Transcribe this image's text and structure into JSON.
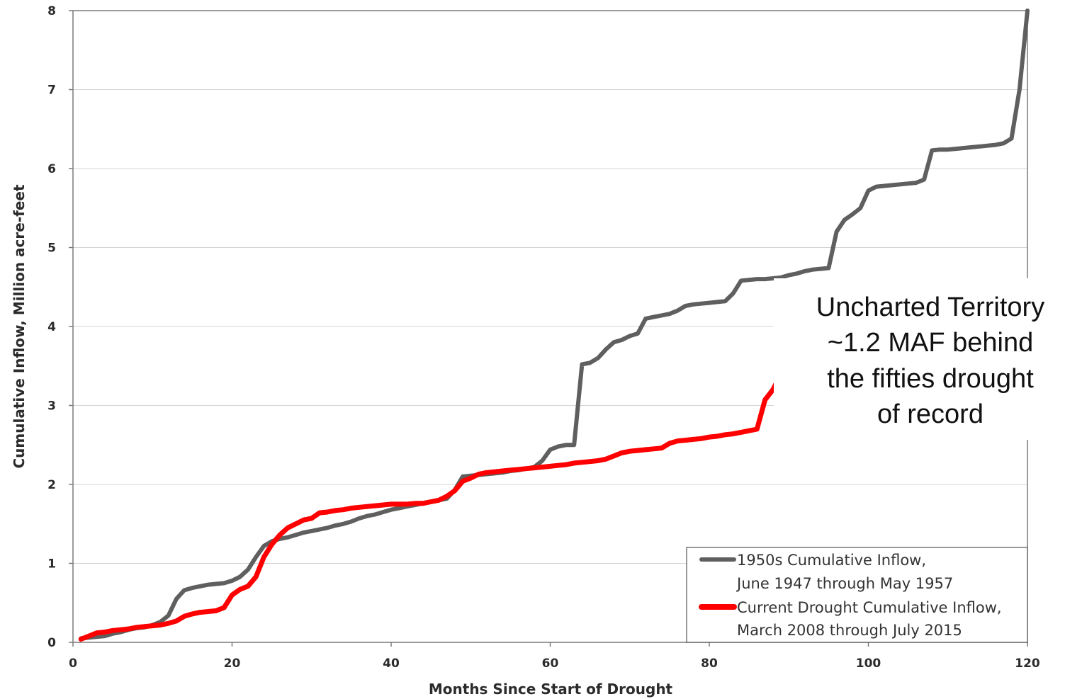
{
  "chart_data": {
    "type": "line",
    "title": "",
    "xlabel": "Months Since Start of Drought",
    "ylabel": "Cumulative Inflow, Million acre-feet",
    "xlim": [
      0,
      120
    ],
    "ylim": [
      0,
      8
    ],
    "x_ticks": [
      "0",
      "20",
      "40",
      "60",
      "80",
      "100",
      "120"
    ],
    "y_ticks": [
      "0",
      "1",
      "2",
      "3",
      "4",
      "5",
      "6",
      "7",
      "8"
    ],
    "grid": "horizontal",
    "legend_position": "bottom-right",
    "series": [
      {
        "name": "1950s Cumulative Inflow, June 1947 through May 1957",
        "legend_lines": [
          "1950s Cumulative Inflow,",
          "June 1947 through May 1957"
        ],
        "color": "#5f5f5f",
        "points": [
          [
            1,
            0.05
          ],
          [
            2,
            0.06
          ],
          [
            3,
            0.07
          ],
          [
            4,
            0.08
          ],
          [
            5,
            0.11
          ],
          [
            6,
            0.13
          ],
          [
            7,
            0.16
          ],
          [
            8,
            0.18
          ],
          [
            9,
            0.19
          ],
          [
            10,
            0.22
          ],
          [
            11,
            0.26
          ],
          [
            12,
            0.34
          ],
          [
            13,
            0.55
          ],
          [
            14,
            0.66
          ],
          [
            15,
            0.69
          ],
          [
            16,
            0.71
          ],
          [
            17,
            0.73
          ],
          [
            18,
            0.74
          ],
          [
            19,
            0.75
          ],
          [
            20,
            0.78
          ],
          [
            21,
            0.83
          ],
          [
            22,
            0.92
          ],
          [
            23,
            1.08
          ],
          [
            24,
            1.22
          ],
          [
            25,
            1.28
          ],
          [
            26,
            1.31
          ],
          [
            27,
            1.33
          ],
          [
            28,
            1.36
          ],
          [
            29,
            1.39
          ],
          [
            30,
            1.41
          ],
          [
            31,
            1.43
          ],
          [
            32,
            1.45
          ],
          [
            33,
            1.48
          ],
          [
            34,
            1.5
          ],
          [
            35,
            1.53
          ],
          [
            36,
            1.57
          ],
          [
            37,
            1.6
          ],
          [
            38,
            1.62
          ],
          [
            39,
            1.65
          ],
          [
            40,
            1.68
          ],
          [
            41,
            1.7
          ],
          [
            42,
            1.72
          ],
          [
            43,
            1.74
          ],
          [
            44,
            1.76
          ],
          [
            45,
            1.78
          ],
          [
            46,
            1.8
          ],
          [
            47,
            1.82
          ],
          [
            48,
            1.93
          ],
          [
            49,
            2.1
          ],
          [
            50,
            2.11
          ],
          [
            51,
            2.12
          ],
          [
            52,
            2.13
          ],
          [
            53,
            2.14
          ],
          [
            54,
            2.15
          ],
          [
            55,
            2.17
          ],
          [
            56,
            2.18
          ],
          [
            57,
            2.2
          ],
          [
            58,
            2.22
          ],
          [
            59,
            2.3
          ],
          [
            60,
            2.44
          ],
          [
            61,
            2.48
          ],
          [
            62,
            2.5
          ],
          [
            63,
            2.5
          ],
          [
            64,
            3.52
          ],
          [
            65,
            3.54
          ],
          [
            66,
            3.6
          ],
          [
            67,
            3.71
          ],
          [
            68,
            3.8
          ],
          [
            69,
            3.83
          ],
          [
            70,
            3.88
          ],
          [
            71,
            3.91
          ],
          [
            72,
            4.1
          ],
          [
            73,
            4.12
          ],
          [
            74,
            4.14
          ],
          [
            75,
            4.16
          ],
          [
            76,
            4.2
          ],
          [
            77,
            4.26
          ],
          [
            78,
            4.28
          ],
          [
            79,
            4.29
          ],
          [
            80,
            4.3
          ],
          [
            81,
            4.31
          ],
          [
            82,
            4.32
          ],
          [
            83,
            4.42
          ],
          [
            84,
            4.58
          ],
          [
            85,
            4.59
          ],
          [
            86,
            4.6
          ],
          [
            87,
            4.6
          ],
          [
            88,
            4.61
          ],
          [
            89,
            4.62
          ],
          [
            90,
            4.65
          ],
          [
            91,
            4.67
          ],
          [
            92,
            4.7
          ],
          [
            93,
            4.72
          ],
          [
            94,
            4.73
          ],
          [
            95,
            4.74
          ],
          [
            96,
            5.2
          ],
          [
            97,
            5.35
          ],
          [
            98,
            5.42
          ],
          [
            99,
            5.5
          ],
          [
            100,
            5.72
          ],
          [
            101,
            5.77
          ],
          [
            102,
            5.78
          ],
          [
            103,
            5.79
          ],
          [
            104,
            5.8
          ],
          [
            105,
            5.81
          ],
          [
            106,
            5.82
          ],
          [
            107,
            5.86
          ],
          [
            108,
            6.23
          ],
          [
            109,
            6.24
          ],
          [
            110,
            6.24
          ],
          [
            111,
            6.25
          ],
          [
            112,
            6.26
          ],
          [
            113,
            6.27
          ],
          [
            114,
            6.28
          ],
          [
            115,
            6.29
          ],
          [
            116,
            6.3
          ],
          [
            117,
            6.32
          ],
          [
            118,
            6.38
          ],
          [
            119,
            7.0
          ],
          [
            120,
            8.0
          ]
        ]
      },
      {
        "name": "Current Drought Cumulative Inflow, March 2008 through July 2015",
        "legend_lines": [
          "Current Drought Cumulative Inflow,",
          "March 2008 through July 2015"
        ],
        "color": "#ff0000",
        "points": [
          [
            1,
            0.04
          ],
          [
            2,
            0.08
          ],
          [
            3,
            0.12
          ],
          [
            4,
            0.13
          ],
          [
            5,
            0.15
          ],
          [
            6,
            0.16
          ],
          [
            7,
            0.17
          ],
          [
            8,
            0.19
          ],
          [
            9,
            0.2
          ],
          [
            10,
            0.21
          ],
          [
            11,
            0.22
          ],
          [
            12,
            0.24
          ],
          [
            13,
            0.27
          ],
          [
            14,
            0.33
          ],
          [
            15,
            0.36
          ],
          [
            16,
            0.38
          ],
          [
            17,
            0.39
          ],
          [
            18,
            0.4
          ],
          [
            19,
            0.44
          ],
          [
            20,
            0.6
          ],
          [
            21,
            0.67
          ],
          [
            22,
            0.71
          ],
          [
            23,
            0.83
          ],
          [
            24,
            1.08
          ],
          [
            25,
            1.24
          ],
          [
            26,
            1.36
          ],
          [
            27,
            1.45
          ],
          [
            28,
            1.5
          ],
          [
            29,
            1.55
          ],
          [
            30,
            1.57
          ],
          [
            31,
            1.64
          ],
          [
            32,
            1.65
          ],
          [
            33,
            1.67
          ],
          [
            34,
            1.68
          ],
          [
            35,
            1.7
          ],
          [
            36,
            1.71
          ],
          [
            37,
            1.72
          ],
          [
            38,
            1.73
          ],
          [
            39,
            1.74
          ],
          [
            40,
            1.75
          ],
          [
            41,
            1.75
          ],
          [
            42,
            1.75
          ],
          [
            43,
            1.76
          ],
          [
            44,
            1.76
          ],
          [
            45,
            1.78
          ],
          [
            46,
            1.8
          ],
          [
            47,
            1.85
          ],
          [
            48,
            1.92
          ],
          [
            49,
            2.04
          ],
          [
            50,
            2.08
          ],
          [
            51,
            2.13
          ],
          [
            52,
            2.15
          ],
          [
            53,
            2.16
          ],
          [
            54,
            2.17
          ],
          [
            55,
            2.18
          ],
          [
            56,
            2.19
          ],
          [
            57,
            2.2
          ],
          [
            58,
            2.21
          ],
          [
            59,
            2.22
          ],
          [
            60,
            2.23
          ],
          [
            61,
            2.24
          ],
          [
            62,
            2.25
          ],
          [
            63,
            2.27
          ],
          [
            64,
            2.28
          ],
          [
            65,
            2.29
          ],
          [
            66,
            2.3
          ],
          [
            67,
            2.32
          ],
          [
            68,
            2.36
          ],
          [
            69,
            2.4
          ],
          [
            70,
            2.42
          ],
          [
            71,
            2.43
          ],
          [
            72,
            2.44
          ],
          [
            73,
            2.45
          ],
          [
            74,
            2.46
          ],
          [
            75,
            2.52
          ],
          [
            76,
            2.55
          ],
          [
            77,
            2.56
          ],
          [
            78,
            2.57
          ],
          [
            79,
            2.58
          ],
          [
            80,
            2.6
          ],
          [
            81,
            2.61
          ],
          [
            82,
            2.63
          ],
          [
            83,
            2.64
          ],
          [
            84,
            2.66
          ],
          [
            85,
            2.68
          ],
          [
            86,
            2.7
          ],
          [
            87,
            3.07
          ],
          [
            88,
            3.2
          ],
          [
            89,
            3.4
          ]
        ]
      }
    ],
    "annotations": [
      {
        "lines": [
          "Uncharted Territory",
          "~1.2 MAF behind",
          "the fifties drought",
          "of record"
        ]
      }
    ]
  }
}
